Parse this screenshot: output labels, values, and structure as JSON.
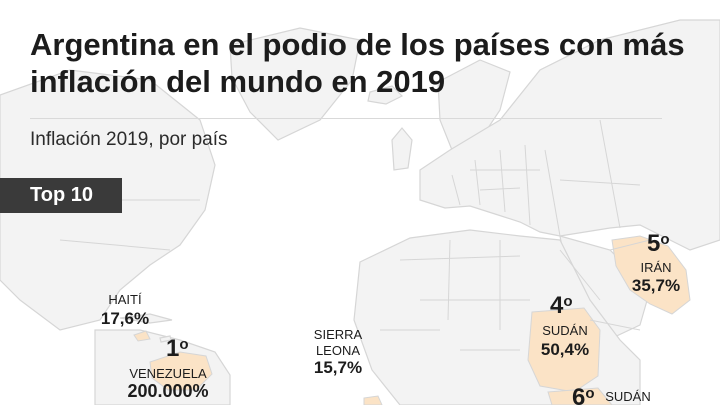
{
  "title": "Argentina en el podio de los países con más inflación del mundo en 2019",
  "subtitle": "Inflación 2019, por país",
  "badge": "Top 10",
  "countries": {
    "venezuela": {
      "rank": "1",
      "ordinal": "o",
      "name": "VENEZUELA",
      "value": "200.000%"
    },
    "iran": {
      "rank": "5",
      "ordinal": "o",
      "name": "IRÁN",
      "value": "35,7%"
    },
    "sudan": {
      "rank": "4",
      "ordinal": "o",
      "name": "SUDÁN",
      "value": "50,4%"
    },
    "south_sudan": {
      "rank": "6",
      "ordinal": "o",
      "name": "SUDÁN"
    },
    "haiti": {
      "name": "HAITÍ",
      "value": "17,6%"
    },
    "sierra_leone": {
      "name_line1": "SIERRA",
      "name_line2": "LEONA",
      "value": "15,7%"
    }
  },
  "colors": {
    "highlight": "#fbe3c6",
    "land": "#f3f3f3",
    "border": "#d6d6d6",
    "badge": "#3a3a3a"
  }
}
